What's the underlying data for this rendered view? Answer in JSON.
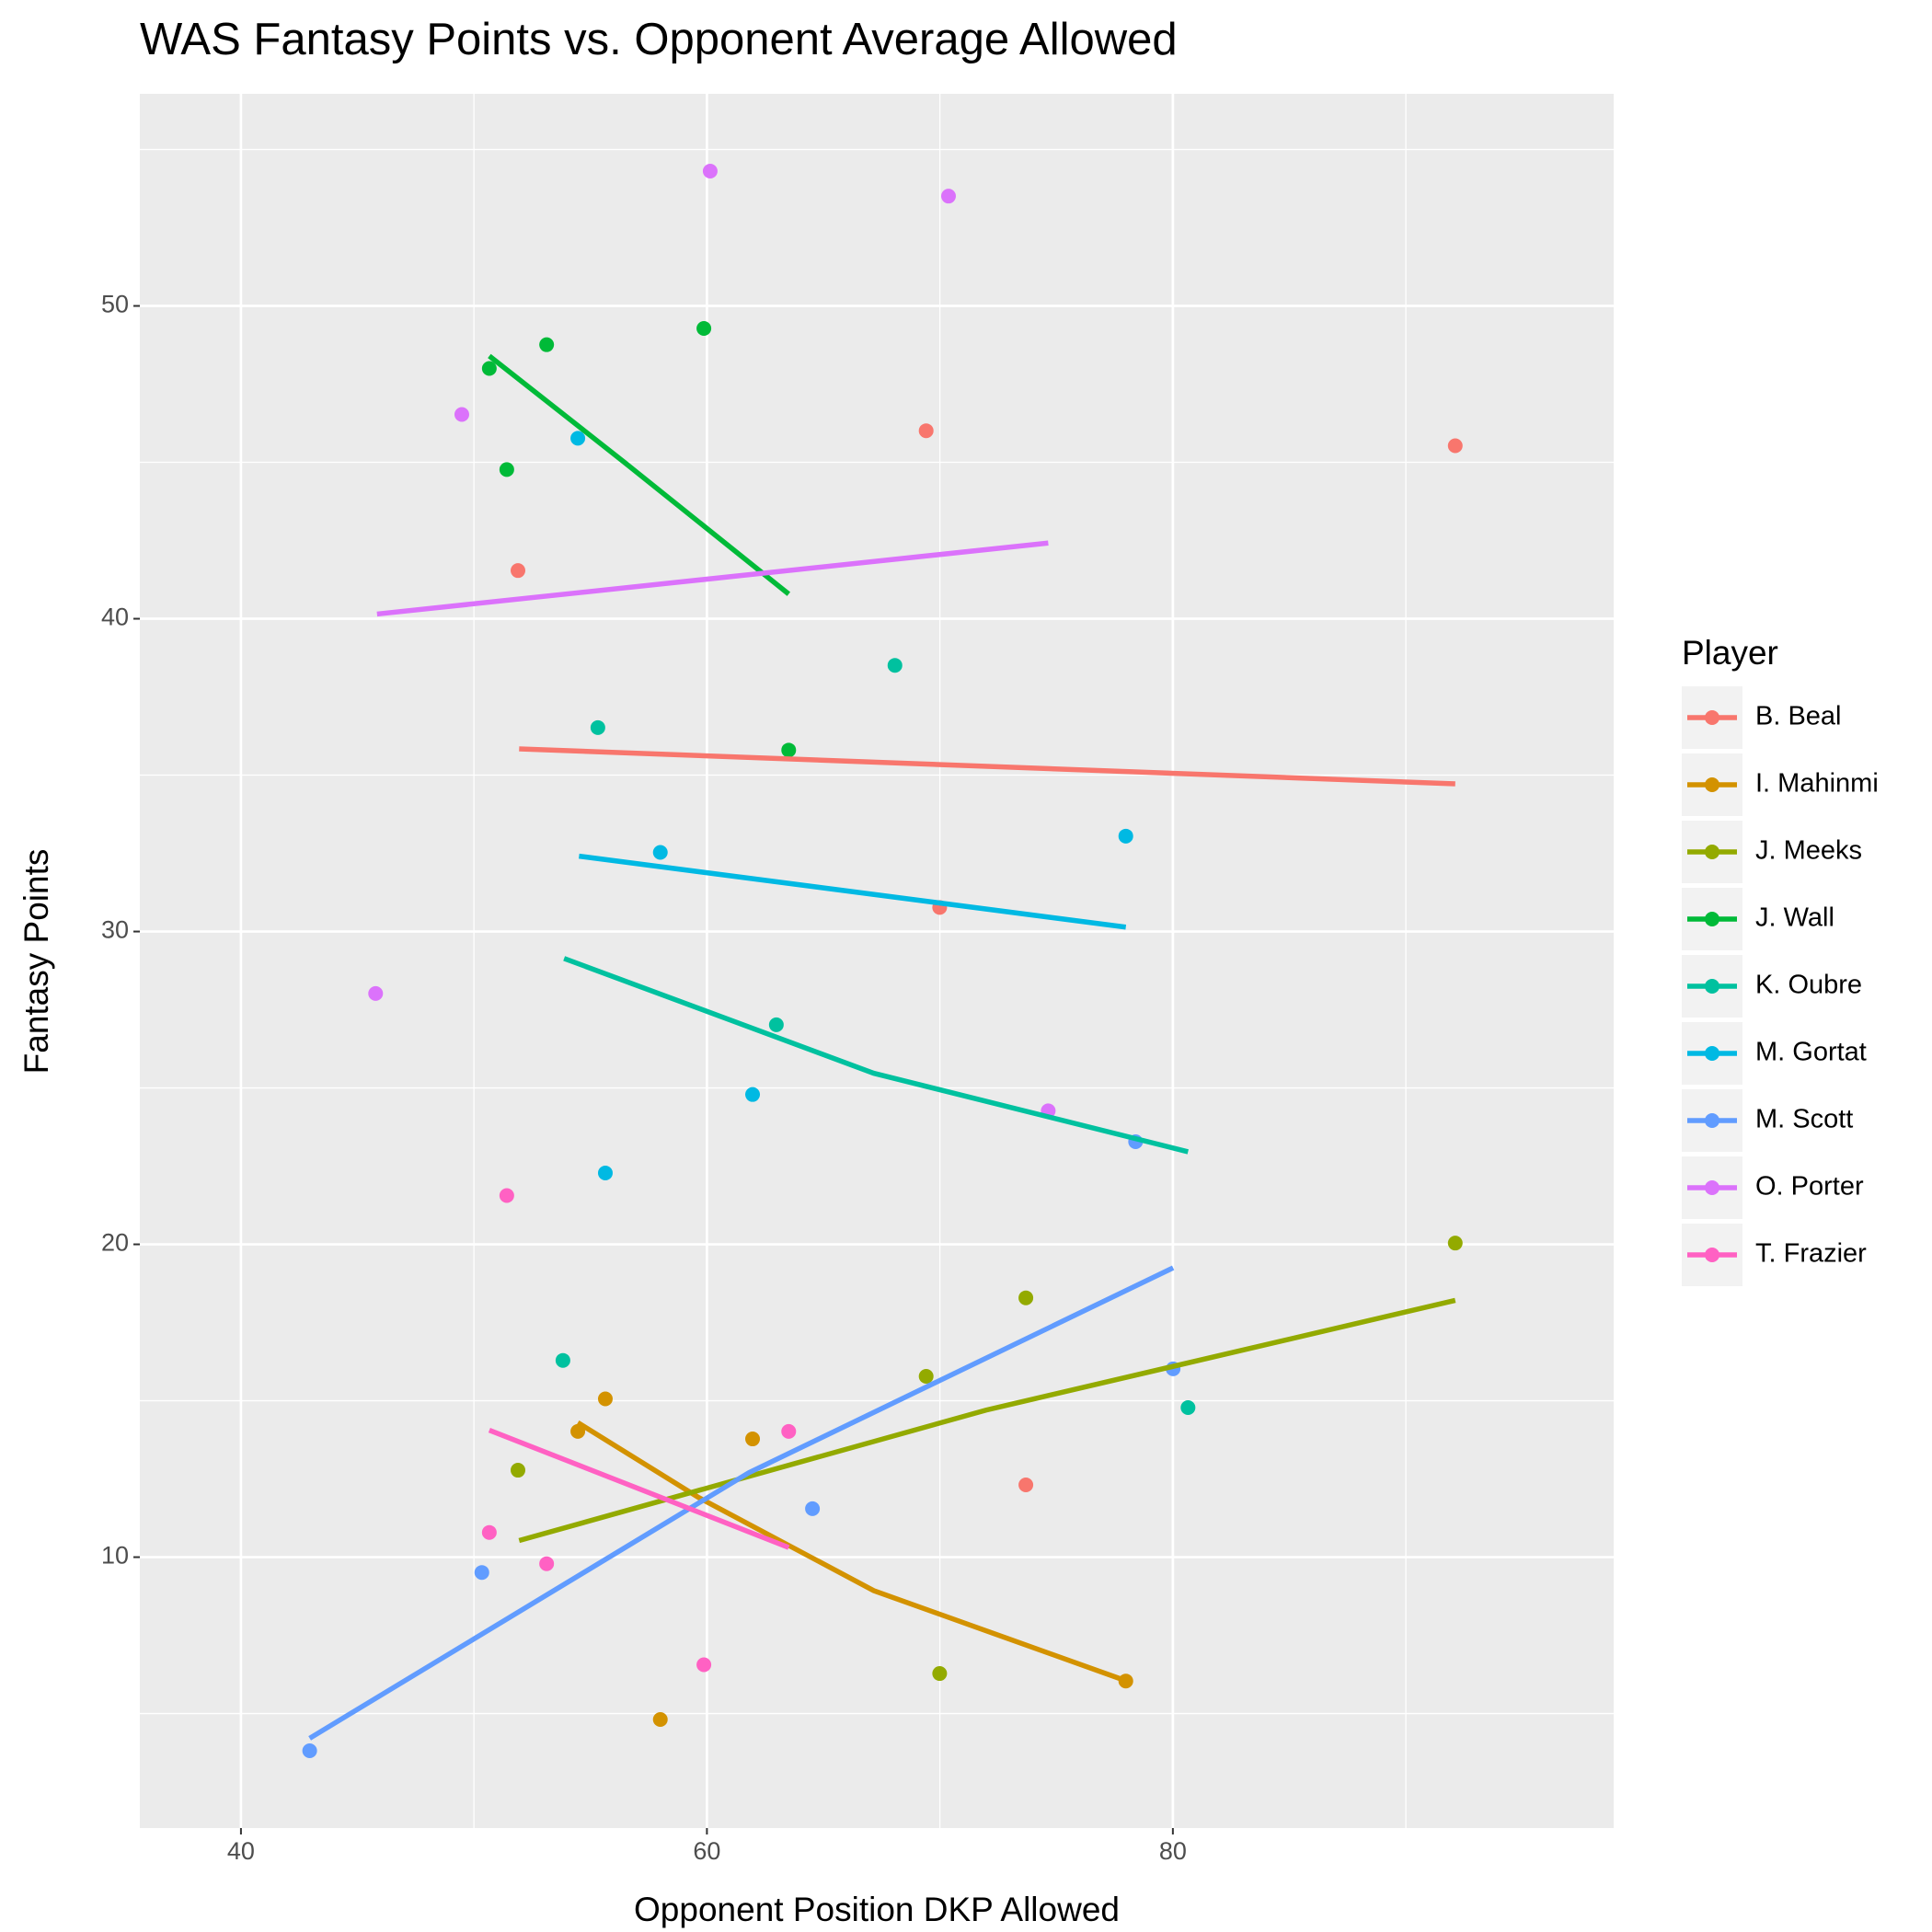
{
  "chart_data": {
    "type": "scatter",
    "title": "WAS Fantasy Points vs. Opponent Average Allowed",
    "x_label": "Opponent Position DKP Allowed",
    "y_label": "Fantasy Points",
    "legend_title": "Player",
    "legend_position": "right",
    "grid": true,
    "xlim": [
      35.66,
      98.92
    ],
    "ylim": [
      1.34,
      56.78
    ],
    "xticks": [
      40,
      60,
      80
    ],
    "yticks": [
      10,
      20,
      30,
      40,
      50
    ],
    "xminor": [
      50,
      70,
      90
    ],
    "yminor": [
      5,
      15,
      25,
      35,
      45,
      55
    ],
    "series": [
      {
        "name": "B. Beal",
        "color": "#F8766D",
        "x": [
          69.41,
          92.12,
          51.89,
          69.99,
          73.69
        ],
        "values": [
          46.01,
          45.53,
          41.54,
          30.77,
          12.31
        ],
        "fit": {
          "x": [
            51.94,
            92.12
          ],
          "y": [
            35.84,
            34.72
          ]
        }
      },
      {
        "name": "I. Mahinmi",
        "color": "#D39200",
        "x": [
          55.64,
          54.46,
          61.96,
          58.0,
          77.98
        ],
        "values": [
          15.06,
          14.02,
          13.78,
          4.81,
          6.04
        ],
        "fit": {
          "x": [
            54.46,
            59.66,
            67.16,
            77.98
          ],
          "y": [
            14.3,
            11.9,
            8.93,
            6.05
          ]
        }
      },
      {
        "name": "J. Meeks",
        "color": "#93AA00",
        "x": [
          92.12,
          73.69,
          69.41,
          51.89,
          69.99
        ],
        "values": [
          20.04,
          18.29,
          15.78,
          12.78,
          6.28
        ],
        "fit": {
          "x": [
            51.94,
            71.98,
            92.12
          ],
          "y": [
            10.53,
            14.7,
            18.21
          ]
        }
      },
      {
        "name": "J. Wall",
        "color": "#00BA38",
        "x": [
          59.87,
          53.12,
          50.66,
          51.41,
          63.51
        ],
        "values": [
          49.28,
          48.76,
          48.0,
          44.77,
          35.8
        ],
        "fit": {
          "x": [
            50.66,
            56.44,
            63.51
          ],
          "y": [
            48.4,
            45.01,
            40.79
          ]
        }
      },
      {
        "name": "K. Oubre",
        "color": "#00C19F",
        "x": [
          68.07,
          55.32,
          62.98,
          53.82,
          80.65
        ],
        "values": [
          38.51,
          36.52,
          27.02,
          16.29,
          14.78
        ],
        "fit": {
          "x": [
            53.87,
            67.16,
            80.65
          ],
          "y": [
            29.14,
            25.47,
            22.96
          ]
        }
      },
      {
        "name": "M. Gortat",
        "color": "#00B9E3",
        "x": [
          54.46,
          58.0,
          77.98,
          61.96,
          55.64
        ],
        "values": [
          45.77,
          32.53,
          33.05,
          24.79,
          22.28
        ],
        "fit": {
          "x": [
            54.51,
            77.98
          ],
          "y": [
            32.41,
            30.14
          ]
        }
      },
      {
        "name": "M. Scott",
        "color": "#619CFF",
        "x": [
          42.95,
          50.34,
          64.53,
          80.01,
          78.4
        ],
        "values": [
          3.81,
          9.51,
          11.55,
          16.02,
          23.28
        ],
        "fit": {
          "x": [
            42.95,
            61.8,
            80.01
          ],
          "y": [
            4.21,
            12.7,
            19.25
          ]
        }
      },
      {
        "name": "O. Porter",
        "color": "#DB72FB",
        "x": [
          60.14,
          70.37,
          49.48,
          45.78,
          74.65
        ],
        "values": [
          54.31,
          53.51,
          46.53,
          28.02,
          24.27
        ],
        "fit": {
          "x": [
            45.84,
            74.65
          ],
          "y": [
            40.15,
            42.42
          ]
        }
      },
      {
        "name": "T. Frazier",
        "color": "#FF61C3",
        "x": [
          51.41,
          63.51,
          50.66,
          53.12,
          59.87
        ],
        "values": [
          21.56,
          14.02,
          10.79,
          9.79,
          6.56
        ],
        "fit": {
          "x": [
            50.66,
            63.51
          ],
          "y": [
            14.06,
            10.31
          ]
        }
      }
    ]
  }
}
